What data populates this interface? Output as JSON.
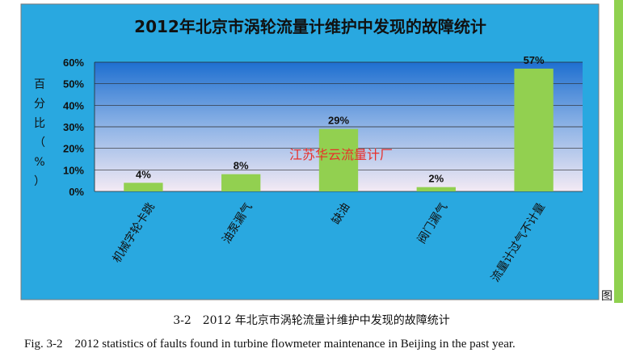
{
  "chart_data": {
    "type": "bar",
    "title": "2012年北京市涡轮流量计维护中发现的故障统计",
    "ylabel": "百分比（%）",
    "xlabel": "",
    "categories": [
      "机械字轮卡跳",
      "油泵漏气",
      "缺油",
      "阀门漏气",
      "流量计过气不计量"
    ],
    "values": [
      4,
      8,
      29,
      2,
      57
    ],
    "data_labels": [
      "4%",
      "8%",
      "29%",
      "2%",
      "57%"
    ],
    "yticks": [
      "0%",
      "10%",
      "20%",
      "30%",
      "40%",
      "50%",
      "60%"
    ],
    "ylim": [
      0,
      60
    ],
    "grid": true,
    "legend": "none",
    "colors": {
      "bar": "#92d050",
      "background": "#29a8e0",
      "plot_top": "#1e6fd0",
      "plot_bottom": "#f4eaf4"
    }
  },
  "watermark": "江苏华云流量计厂",
  "fig_mark": "图",
  "caption_cn": "3-2　2012 年北京市涡轮流量计维护中发现的故障统计",
  "caption_en": "Fig. 3-2　2012 statistics of faults found in turbine flowmeter maintenance in Beijing in the past year."
}
